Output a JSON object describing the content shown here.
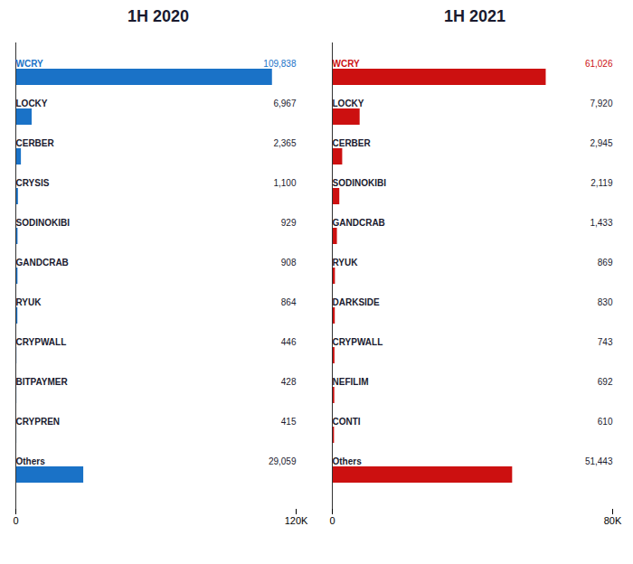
{
  "chart_data": [
    {
      "type": "bar",
      "orientation": "horizontal",
      "title": "1H 2020",
      "color": "#1a72c7",
      "categories": [
        "WCRY",
        "LOCKY",
        "CERBER",
        "CRYSIS",
        "SODINOKIBI",
        "GANDCRAB",
        "RYUK",
        "CRYPWALL",
        "BITPAYMER",
        "CRYPREN",
        "Others"
      ],
      "values": [
        109838,
        6967,
        2365,
        1100,
        929,
        908,
        864,
        446,
        428,
        415,
        29059
      ],
      "value_labels": [
        "109,838",
        "6,967",
        "2,365",
        "1,100",
        "929",
        "908",
        "864",
        "446",
        "428",
        "415",
        "29,059"
      ],
      "data_labels": true,
      "xlim": [
        0,
        120000
      ],
      "xticks": [
        0,
        {
          "value": 120000,
          "label": "120K"
        }
      ],
      "grid": false,
      "tick_labels": "x"
    },
    {
      "type": "bar",
      "orientation": "horizontal",
      "title": "1H 2021",
      "color": "#cc1010",
      "categories": [
        "WCRY",
        "LOCKY",
        "CERBER",
        "SODINOKIBI",
        "GANDCRAB",
        "RYUK",
        "DARKSIDE",
        "CRYPWALL",
        "NEFILIM",
        "CONTI",
        "Others"
      ],
      "values": [
        61026,
        7920,
        2945,
        2119,
        1433,
        869,
        830,
        743,
        692,
        610,
        51443
      ],
      "value_labels": [
        "61,026",
        "7,920",
        "2,945",
        "2,119",
        "1,433",
        "869",
        "830",
        "743",
        "692",
        "610",
        "51,443"
      ],
      "data_labels": true,
      "xlim": [
        0,
        80000
      ],
      "xticks": [
        0,
        {
          "value": 80000,
          "label": "80K"
        }
      ],
      "grid": false,
      "tick_labels": "x"
    }
  ]
}
